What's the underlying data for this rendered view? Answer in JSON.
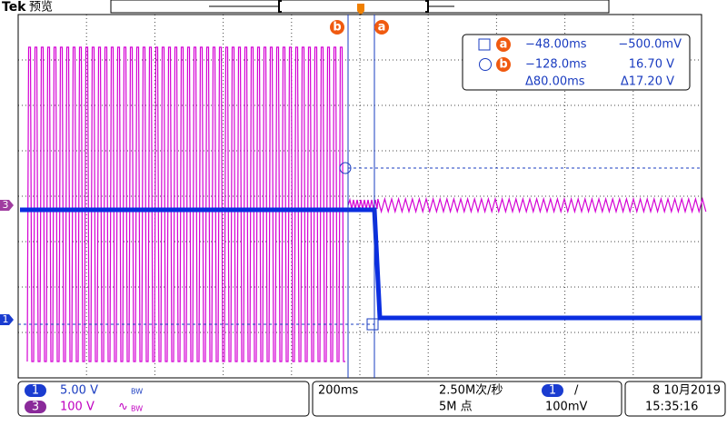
{
  "header": {
    "brand": "Tek",
    "mode": "预览"
  },
  "cursor_labels": {
    "b": "b",
    "a": "a"
  },
  "readout": {
    "rows": [
      {
        "marker": "a",
        "time": "−48.00ms",
        "voltage": "−500.0mV"
      },
      {
        "marker": "b",
        "time": "−128.0ms",
        "voltage": "16.70 V"
      }
    ],
    "delta": {
      "time": "Δ80.00ms",
      "voltage": "Δ17.20 V"
    }
  },
  "channel_markers": {
    "ch3": "3",
    "ch1": "1"
  },
  "status": {
    "channels": [
      {
        "number": "1",
        "scale": "5.00 V",
        "bandwidth": "BW"
      },
      {
        "number": "3",
        "scale": "100 V",
        "coupling": "∿",
        "bandwidth": "BW"
      }
    ],
    "timebase": "200ms",
    "sample_rate": "2.50M次/秒",
    "record_length": "5M 点",
    "trigger": {
      "source": "1",
      "slope": "/",
      "level": "100mV"
    },
    "date": "8 10月2019",
    "time": "15:35:16"
  }
}
